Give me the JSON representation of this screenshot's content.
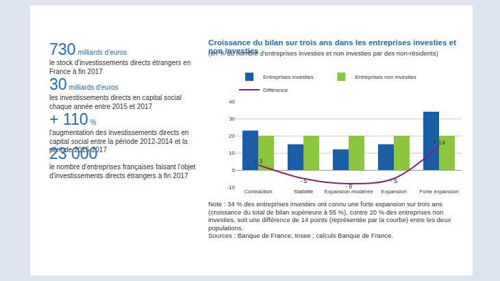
{
  "key_figures": [
    {
      "value": "730",
      "unit": "milliards d'euros",
      "text": "le stock d'investissements directs étrangers en France à fin 2017"
    },
    {
      "value": "30",
      "unit": "milliards d'euros",
      "text": "les investissements directs en capital social chaque année entre 2015 et 2017"
    },
    {
      "value": "+ 110",
      "unit": "%",
      "text": "l'augmentation des investissements directs en capital social entre la période 2012-2014 et la période 2015-2017"
    },
    {
      "value": "23 000",
      "text": "le nombre d'entreprises françaises faisant l'objet d'investissements directs étrangers à fin 2017"
    }
  ],
  "chart_data": {
    "type": "bar",
    "title": "Croissance du bilan sur trois ans dans les entreprises investies et non investies",
    "subtitle": "(en % du nombre d'entreprises investies et non investies par des non-résidents)",
    "categories": [
      "Contraction",
      "Stabilité",
      "Expansion modérée",
      "Expansion",
      "Forte expansion"
    ],
    "series": [
      {
        "name": "Entreprises investies",
        "type": "bar",
        "color": "#1b5ea8",
        "values": [
          23,
          15,
          12,
          15,
          34
        ]
      },
      {
        "name": "Entreprises non investies",
        "type": "bar",
        "color": "#8cc63f",
        "values": [
          20,
          20,
          20,
          20,
          20
        ]
      },
      {
        "name": "Différence",
        "type": "line",
        "color": "#8e1f6f",
        "line_style": "solid",
        "data_labels": true,
        "values": [
          3,
          -5,
          -8,
          -5,
          14
        ],
        "value_labels": [
          "+ 3",
          "- 5",
          "- 8",
          "- 5",
          "+ 14"
        ]
      }
    ],
    "ylim": [
      -10,
      40
    ],
    "yticks": [
      -10,
      0,
      10,
      20,
      30,
      40
    ],
    "grid": true,
    "legend": "top",
    "note": "Note : 34 % des entreprises investies ont connu une forte expansion sur trois ans (croissance du total de bilan supérieure à 55 %), contre 20 % des entreprises non investies, soit une différence de 14 points (représentée par la courbe) entre les deux populations.",
    "sources": "Sources : Banque de France, Insee ; calculs Banque de France."
  }
}
